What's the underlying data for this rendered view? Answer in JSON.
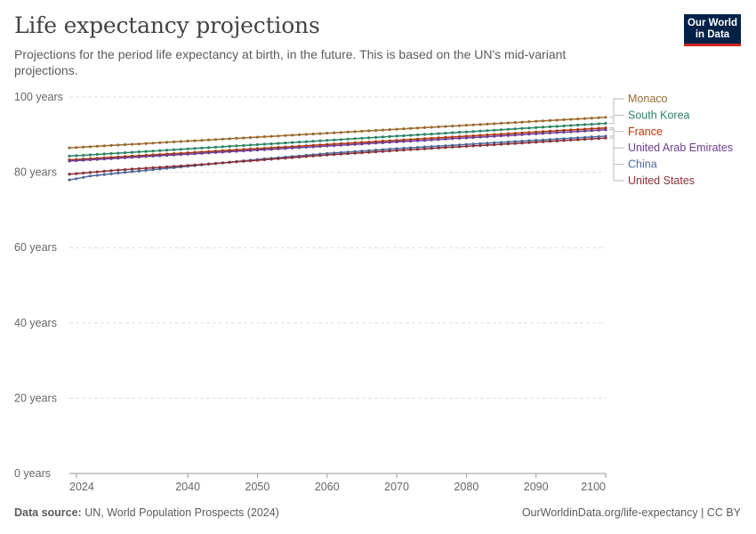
{
  "header": {
    "title": "Life expectancy projections",
    "subtitle": "Projections for the period life expectancy at birth, in the future. This is based on the UN's mid-variant projections.",
    "logo_line1": "Our World",
    "logo_line2": "in Data"
  },
  "footer": {
    "source_label": "Data source:",
    "source_text": "UN, World Population Prospects (2024)",
    "link": "OurWorldinData.org/life-expectancy | CC BY"
  },
  "chart_data": {
    "type": "line",
    "title": "Life expectancy projections",
    "x_range": [
      2023,
      2100
    ],
    "ylim": [
      0,
      100
    ],
    "y_ticks": [
      0,
      20,
      40,
      60,
      80,
      100
    ],
    "y_tick_labels": [
      "0 years",
      "20 years",
      "40 years",
      "60 years",
      "80 years",
      "100 years"
    ],
    "x_ticks": [
      2024,
      2040,
      2050,
      2060,
      2070,
      2080,
      2090,
      2100
    ],
    "x_tick_labels": [
      "2024",
      "2040",
      "2050",
      "2060",
      "2070",
      "2080",
      "2090",
      "2100"
    ],
    "grid": "horizontal dashed",
    "legend": "right, line-end labels",
    "series": [
      {
        "name": "Monaco",
        "color": "#9a6b2f",
        "x": [
          2023,
          2100
        ],
        "y": [
          86.5,
          94.6
        ]
      },
      {
        "name": "South Korea",
        "color": "#2c8465",
        "x": [
          2023,
          2100
        ],
        "y": [
          84.3,
          93.0
        ]
      },
      {
        "name": "France",
        "color": "#b13507",
        "x": [
          2023,
          2100
        ],
        "y": [
          83.3,
          91.8
        ]
      },
      {
        "name": "United Arab Emirates",
        "color": "#6d3e91",
        "x": [
          2023,
          2100
        ],
        "y": [
          83.0,
          91.3
        ]
      },
      {
        "name": "China",
        "color": "#4c6a9c",
        "x": [
          2023,
          2024,
          2026,
          2030,
          2040,
          2050,
          2060,
          2070,
          2080,
          2090,
          2100
        ],
        "y": [
          78.0,
          78.3,
          79.0,
          79.8,
          81.6,
          83.4,
          85.0,
          86.3,
          87.4,
          88.5,
          89.6
        ]
      },
      {
        "name": "United States",
        "color": "#883039",
        "x": [
          2023,
          2030,
          2040,
          2050,
          2060,
          2070,
          2080,
          2090,
          2100
        ],
        "y": [
          79.5,
          80.6,
          81.8,
          83.2,
          84.6,
          85.8,
          86.9,
          88.0,
          89.1
        ]
      }
    ]
  }
}
